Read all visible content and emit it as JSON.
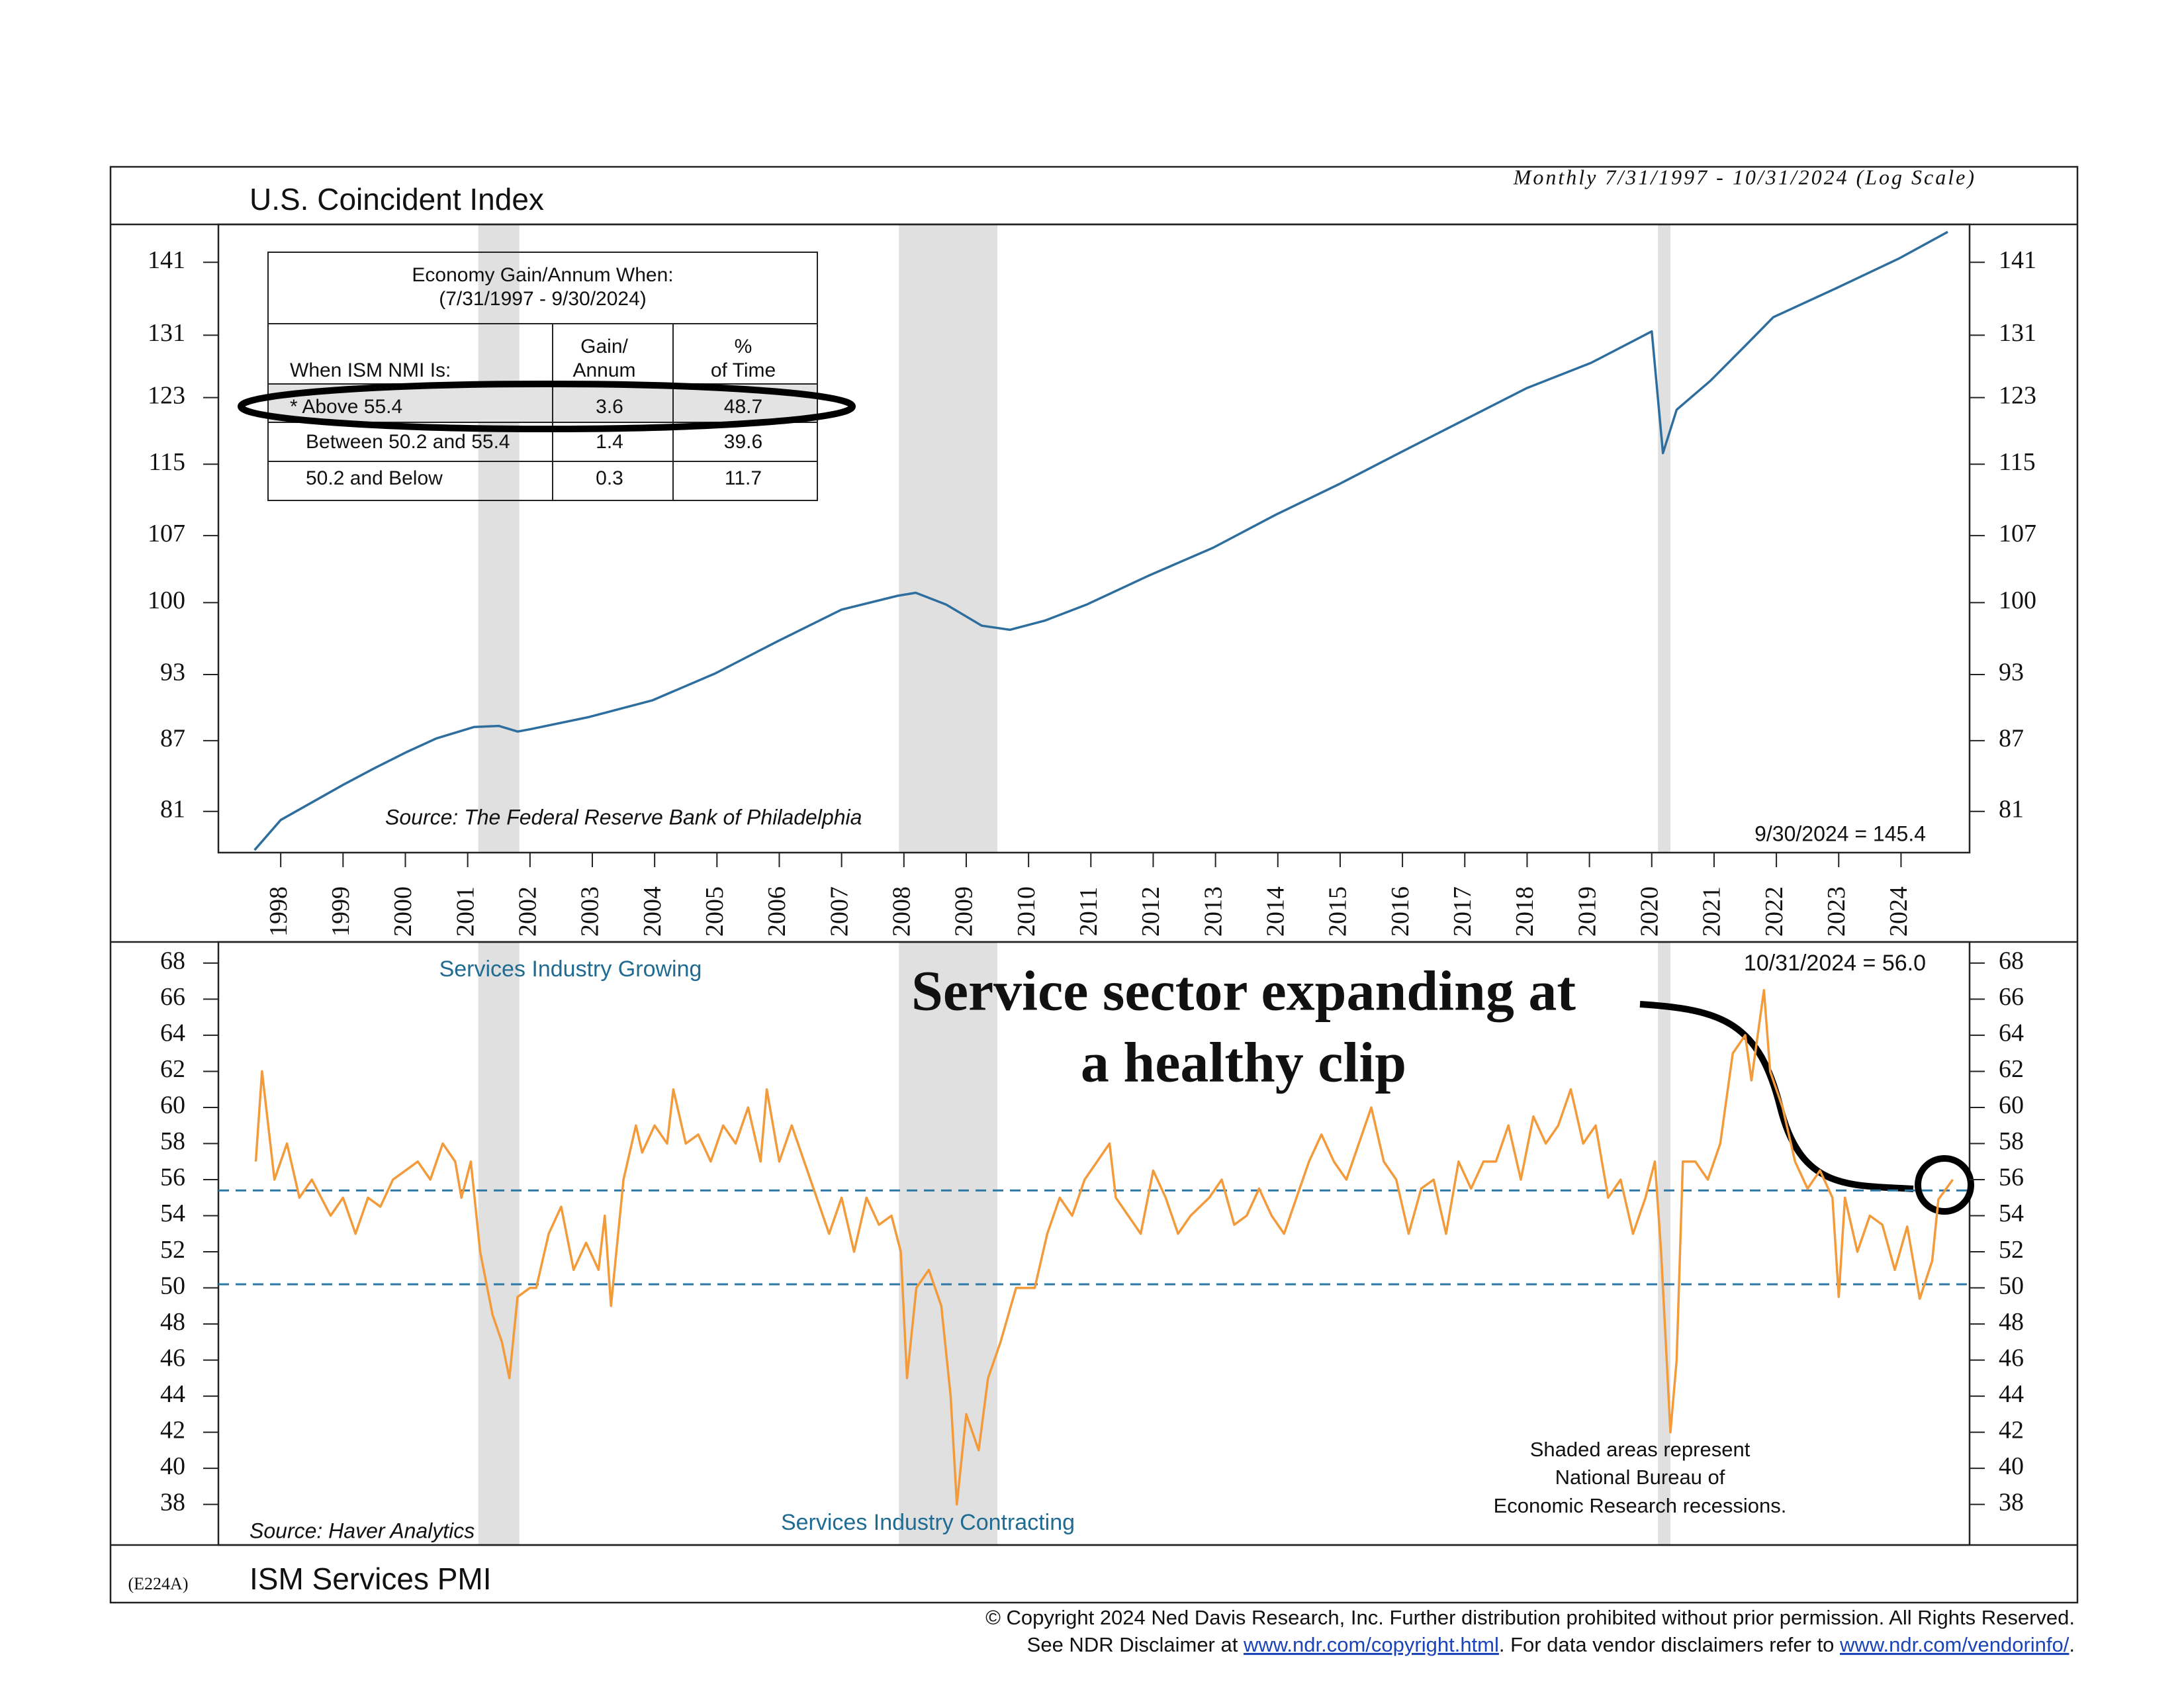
{
  "chart_data": [
    {
      "type": "line",
      "title": "U.S. Coincident Index",
      "subtitle": "Monthly 7/31/1997 - 10/31/2024 (Log Scale)",
      "source": "Source: The Federal Reserve Bank of Philadelphia",
      "last_value_label": "9/30/2024 = 145.4",
      "log_scale": true,
      "color": "#2e6e9e",
      "x": [
        1997.58,
        1998.0,
        1999.0,
        1999.5,
        2000.02,
        2000.5,
        2001.1,
        2001.5,
        2001.8,
        2002.0,
        2002.95,
        2003.96,
        2004.97,
        2005.98,
        2007.0,
        2007.9,
        2008.19,
        2008.68,
        2009.25,
        2009.7,
        2010.26,
        2010.93,
        2011.94,
        2012.96,
        2013.97,
        2014.98,
        2016.0,
        2017.0,
        2018.0,
        2019.03,
        2020.0,
        2020.18,
        2020.4,
        2020.94,
        2021.5,
        2021.95,
        2022.97,
        2023.98,
        2024.75
      ],
      "values": [
        77.9,
        80.3,
        83.2,
        84.6,
        86.0,
        87.2,
        88.2,
        88.3,
        87.8,
        88.0,
        89.1,
        90.6,
        93.1,
        96.2,
        99.3,
        100.7,
        101.0,
        99.8,
        97.7,
        97.3,
        98.2,
        99.8,
        102.8,
        105.7,
        109.3,
        112.7,
        116.5,
        120.3,
        124.2,
        127.4,
        131.5,
        116.3,
        121.5,
        125.1,
        129.6,
        133.4,
        137.4,
        141.6,
        145.4
      ],
      "xlim": [
        1997.0,
        2025.1
      ],
      "xticks": [
        1998,
        1999,
        2000,
        2001,
        2002,
        2003,
        2004,
        2005,
        2006,
        2007,
        2008,
        2009,
        2010,
        2011,
        2012,
        2013,
        2014,
        2015,
        2016,
        2017,
        2018,
        2019,
        2020,
        2021,
        2022,
        2023,
        2024
      ],
      "ylim": [
        77.7,
        146.5
      ],
      "yticks": [
        81,
        87,
        93,
        100,
        107,
        115,
        123,
        131,
        141
      ]
    },
    {
      "type": "line",
      "title": "ISM Services PMI",
      "code": "(E224A)",
      "source": "Source: Haver Analytics",
      "last_value_label": "10/31/2024 = 56.0",
      "annotations": [
        "Services Industry Growing",
        "Services Industry Contracting",
        "Shaded areas represent",
        "National Bureau of",
        "Economic Research recessions."
      ],
      "callout": [
        "Service sector expanding at",
        "a healthy clip"
      ],
      "color": "#f39a3a",
      "reference_lines": [
        55.4,
        50.2
      ],
      "reference_color": "#2e78a8",
      "x": [
        1997.6,
        1997.7,
        1997.9,
        1998.1,
        1998.3,
        1998.5,
        1998.8,
        1999.0,
        1999.2,
        1999.4,
        1999.6,
        1999.8,
        2000.0,
        2000.2,
        2000.4,
        2000.6,
        2000.8,
        2000.9,
        2001.05,
        2001.2,
        2001.4,
        2001.55,
        2001.67,
        2001.8,
        2002.0,
        2002.1,
        2002.3,
        2002.5,
        2002.7,
        2002.9,
        2003.1,
        2003.2,
        2003.3,
        2003.5,
        2003.7,
        2003.8,
        2004.0,
        2004.2,
        2004.3,
        2004.5,
        2004.7,
        2004.9,
        2005.1,
        2005.3,
        2005.5,
        2005.7,
        2005.8,
        2006.0,
        2006.2,
        2006.4,
        2006.6,
        2006.8,
        2007.0,
        2007.2,
        2007.4,
        2007.6,
        2007.8,
        2007.95,
        2008.05,
        2008.2,
        2008.4,
        2008.6,
        2008.75,
        2008.85,
        2009.0,
        2009.2,
        2009.35,
        2009.55,
        2009.8,
        2010.1,
        2010.3,
        2010.5,
        2010.7,
        2010.9,
        2011.1,
        2011.3,
        2011.4,
        2011.6,
        2011.8,
        2012.0,
        2012.2,
        2012.4,
        2012.6,
        2012.9,
        2013.1,
        2013.3,
        2013.5,
        2013.7,
        2013.9,
        2014.1,
        2014.3,
        2014.5,
        2014.7,
        2014.9,
        2015.1,
        2015.3,
        2015.5,
        2015.7,
        2015.9,
        2016.1,
        2016.3,
        2016.5,
        2016.7,
        2016.9,
        2017.1,
        2017.3,
        2017.5,
        2017.7,
        2017.9,
        2018.1,
        2018.3,
        2018.5,
        2018.7,
        2018.9,
        2019.1,
        2019.3,
        2019.5,
        2019.7,
        2019.9,
        2020.05,
        2020.15,
        2020.3,
        2020.4,
        2020.5,
        2020.7,
        2020.9,
        2021.1,
        2021.3,
        2021.5,
        2021.6,
        2021.8,
        2021.9,
        2022.1,
        2022.3,
        2022.5,
        2022.7,
        2022.9,
        2023.0,
        2023.1,
        2023.3,
        2023.5,
        2023.7,
        2023.9,
        2024.1,
        2024.3,
        2024.5,
        2024.6,
        2024.83
      ],
      "values": [
        57,
        62,
        56,
        58,
        55,
        56,
        54,
        55,
        53,
        55,
        54.5,
        56,
        56.5,
        57,
        56,
        58,
        57,
        55,
        57,
        52,
        48.5,
        47,
        45,
        49.5,
        50,
        50,
        53,
        54.5,
        51,
        52.5,
        51,
        54,
        49,
        56,
        59,
        57.5,
        59,
        58,
        61,
        58,
        58.5,
        57,
        59,
        58,
        60,
        57,
        61,
        57,
        59,
        57,
        55,
        53,
        55,
        52,
        55,
        53.5,
        54,
        52,
        45,
        50,
        51,
        49,
        44,
        38,
        43,
        41,
        45,
        47,
        50,
        50,
        53,
        55,
        54,
        56,
        57,
        58,
        55,
        54,
        53,
        56.5,
        55,
        53,
        54,
        55,
        56,
        53.5,
        54,
        55.5,
        54,
        53,
        55,
        57,
        58.5,
        57,
        56,
        58,
        60,
        57,
        56,
        53,
        55.5,
        56,
        53,
        57,
        55.5,
        57,
        57,
        59,
        56,
        59.5,
        58,
        59,
        61,
        58,
        59,
        55,
        56,
        53,
        55,
        57,
        52,
        42,
        46,
        57,
        57,
        56,
        58,
        63,
        64,
        61.5,
        66.5,
        62,
        60,
        57,
        55.5,
        56.5,
        55,
        49.5,
        55,
        52,
        54,
        53.5,
        51,
        53.4,
        49.4,
        51.5,
        54.9,
        56
      ],
      "xlim": [
        1997.0,
        2025.1
      ],
      "ylim": [
        35.75,
        69.17
      ],
      "yticks": [
        38,
        40,
        42,
        44,
        46,
        48,
        50,
        52,
        54,
        56,
        58,
        60,
        62,
        64,
        66,
        68
      ]
    }
  ],
  "recessions": [
    [
      2001.17,
      2001.83
    ],
    [
      2007.92,
      2009.5
    ],
    [
      2020.1,
      2020.3
    ]
  ],
  "recession_color": "#e0e0e0",
  "table": {
    "title": [
      "Economy Gain/Annum When:",
      "(7/31/1997 - 9/30/2024)"
    ],
    "header": [
      "When ISM NMI Is:",
      [
        "Gain/",
        "Annum"
      ],
      [
        "%",
        "of Time"
      ]
    ],
    "rows": [
      [
        "* Above 55.4",
        "3.6",
        "48.7"
      ],
      [
        "Between 50.2 and 55.4",
        "1.4",
        "39.6"
      ],
      [
        "50.2 and Below",
        "0.3",
        "11.7"
      ]
    ]
  },
  "footer": {
    "line1": "© Copyright 2024 Ned Davis Research, Inc.  Further distribution prohibited without prior permission.  All Rights Reserved.",
    "line2": [
      "See NDR Disclaimer at ",
      "www.ndr.com/copyright.html",
      ". For data vendor disclaimers refer to ",
      "www.ndr.com/vendorinfo/",
      "."
    ]
  }
}
